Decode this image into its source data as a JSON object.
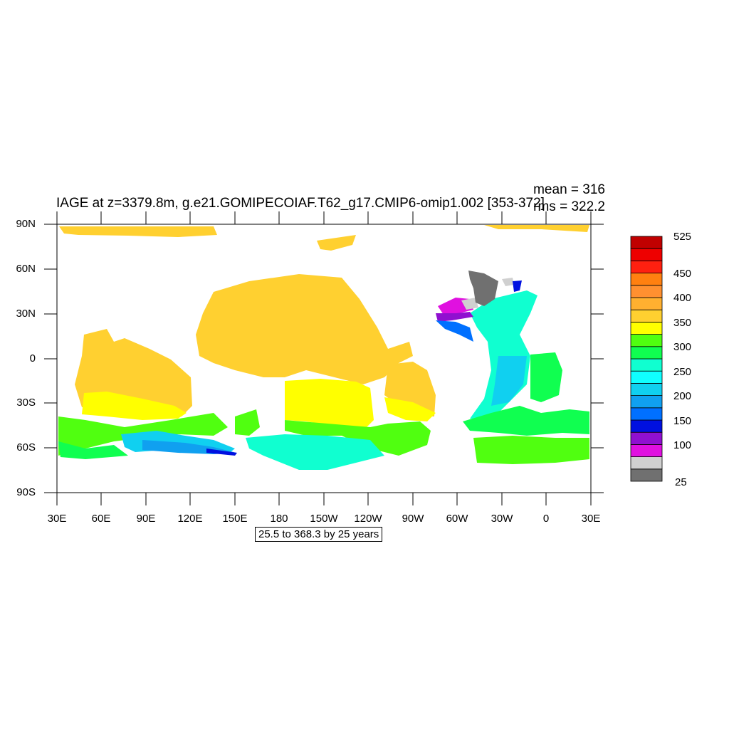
{
  "title": "IAGE at z=3379.8m, g.e21.GOMIPECOIAF.T62_g17.CMIP6-omip1.002 [353-372]",
  "stats": {
    "mean": "mean = 316",
    "rms": "rms = 322.2"
  },
  "contour_note": "25.5 to 368.3 by 25 years",
  "lat_labels": [
    "90N",
    "60N",
    "30N",
    "0",
    "30S",
    "60S",
    "90S"
  ],
  "lon_labels": [
    "30E",
    "60E",
    "90E",
    "120E",
    "150E",
    "180",
    "150W",
    "120W",
    "90W",
    "60W",
    "30W",
    "0",
    "30E"
  ],
  "colorbar": {
    "colors": [
      "#707070",
      "#d0d0d0",
      "#e010e0",
      "#9010d0",
      "#0010e0",
      "#0070ff",
      "#10a0f0",
      "#10d0f0",
      "#10ffff",
      "#10ffd0",
      "#10ff50",
      "#50ff10",
      "#ffff00",
      "#ffd030",
      "#ffb030",
      "#ff9030",
      "#ff8010",
      "#ff2010",
      "#ee0000",
      "#c00000"
    ],
    "labels": [
      "25",
      "100",
      "150",
      "200",
      "250",
      "300",
      "350",
      "400",
      "450",
      "525"
    ]
  },
  "legend_colors": {
    "ocean_dominant": "#ffd030",
    "land": "#ffffff"
  }
}
